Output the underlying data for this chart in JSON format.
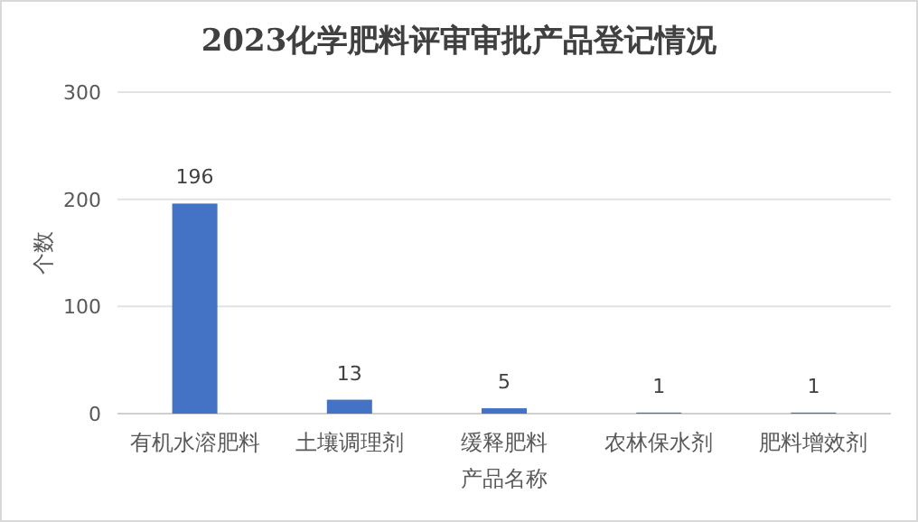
{
  "chart_data": {
    "type": "bar",
    "title": "2023化学肥料评审审批产品登记情况",
    "xlabel": "产品名称",
    "ylabel": "个数",
    "categories": [
      "有机水溶肥料",
      "土壤调理剂",
      "缓释肥料",
      "农林保水剂",
      "肥料增效剂"
    ],
    "values": [
      196,
      13,
      5,
      1,
      1
    ],
    "color": "#4472c4",
    "ylim": [
      0,
      300
    ],
    "yticks": [
      0,
      100,
      200,
      300
    ],
    "grid": "y",
    "data_labels": true
  }
}
